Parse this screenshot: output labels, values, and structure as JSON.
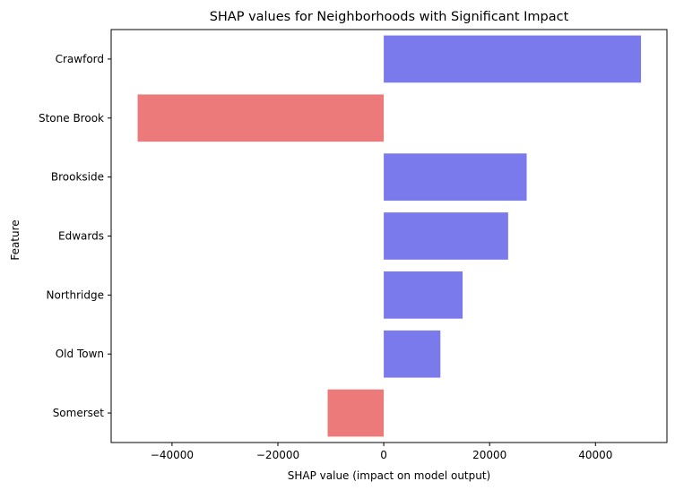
{
  "chart_data": {
    "type": "bar",
    "orientation": "horizontal",
    "title": "SHAP values for Neighborhoods with Significant Impact",
    "xlabel": "SHAP value (impact on model output)",
    "ylabel": "Feature",
    "categories": [
      "Crawford",
      "Stone Brook",
      "Brookside",
      "Edwards",
      "Northridge",
      "Old Town",
      "Somerset"
    ],
    "values": [
      48600,
      -46500,
      27000,
      23500,
      14900,
      10700,
      -10600
    ],
    "xlim": [
      -51500,
      53500
    ],
    "xticks": [
      -40000,
      -20000,
      0,
      20000,
      40000
    ],
    "xtick_labels": [
      "−40000",
      "−20000",
      "0",
      "20000",
      "40000"
    ],
    "grid": false,
    "colors": {
      "positive": "#7a7aed",
      "negative": "#ec7a7a"
    }
  }
}
